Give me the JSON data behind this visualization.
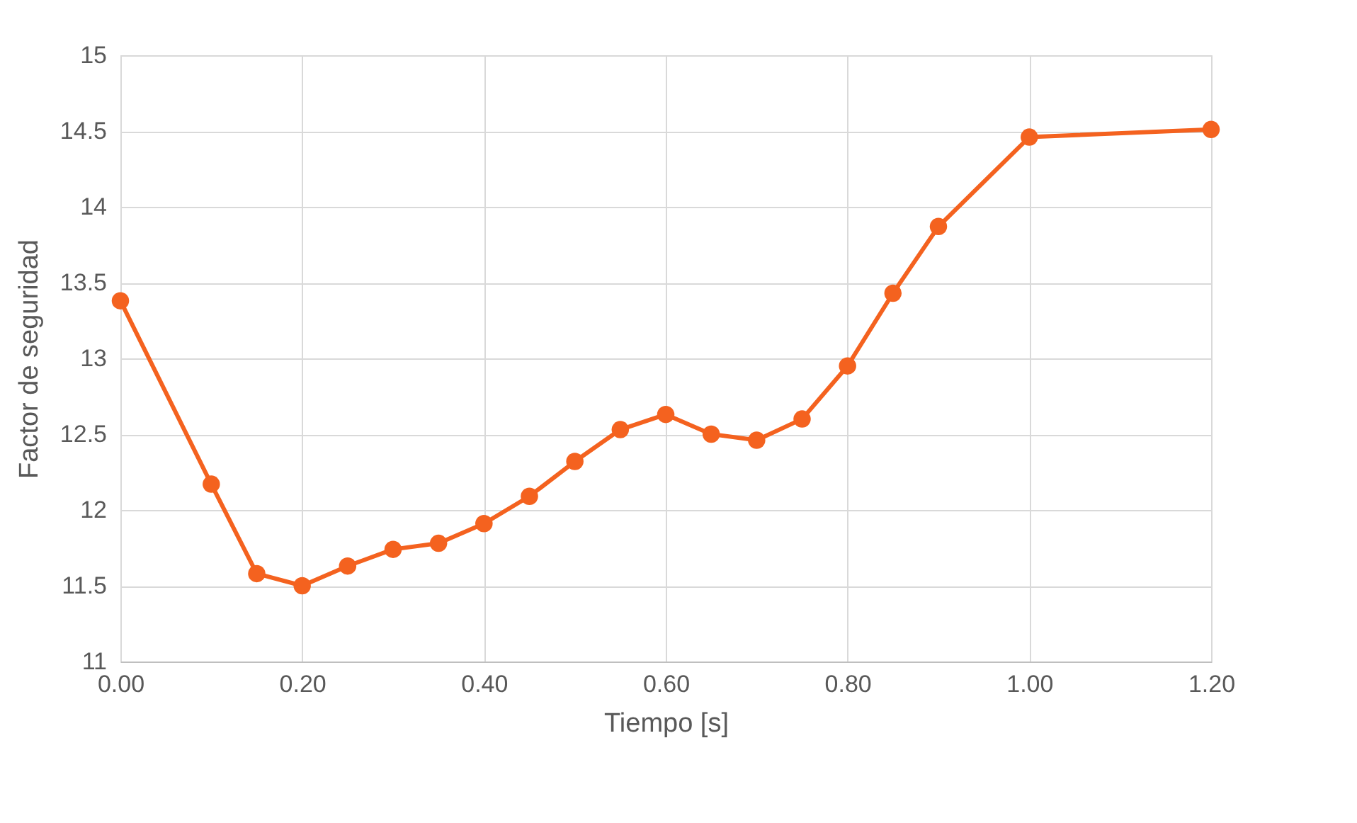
{
  "chart_data": {
    "type": "line",
    "xlabel": "Tiempo [s]",
    "ylabel": "Factor de seguridad",
    "series": [
      {
        "color": "#f4621f",
        "x": [
          0.0,
          0.1,
          0.15,
          0.2,
          0.25,
          0.3,
          0.35,
          0.4,
          0.45,
          0.5,
          0.55,
          0.6,
          0.65,
          0.7,
          0.75,
          0.8,
          0.85,
          0.9,
          1.0,
          1.2
        ],
        "values": [
          13.38,
          12.17,
          11.58,
          11.5,
          11.63,
          11.74,
          11.78,
          11.91,
          12.09,
          12.32,
          12.53,
          12.63,
          12.5,
          12.46,
          12.6,
          12.95,
          13.43,
          13.87,
          14.46,
          14.51
        ]
      }
    ],
    "xlim": [
      0,
      1.2
    ],
    "xticks": [
      {
        "value": 0,
        "label": "0.00"
      },
      {
        "value": 0.2,
        "label": "0.20"
      },
      {
        "value": 0.4,
        "label": "0.40"
      },
      {
        "value": 0.6,
        "label": "0.60"
      },
      {
        "value": 0.8,
        "label": "0.80"
      },
      {
        "value": 1.0,
        "label": "1.00"
      },
      {
        "value": 1.2,
        "label": "1.20"
      }
    ],
    "ylim": [
      11,
      15
    ],
    "yticks": [
      11,
      11.5,
      12,
      12.5,
      13,
      13.5,
      14,
      14.5,
      15
    ],
    "grid": true,
    "marker": "circle",
    "line_style": "solid"
  }
}
